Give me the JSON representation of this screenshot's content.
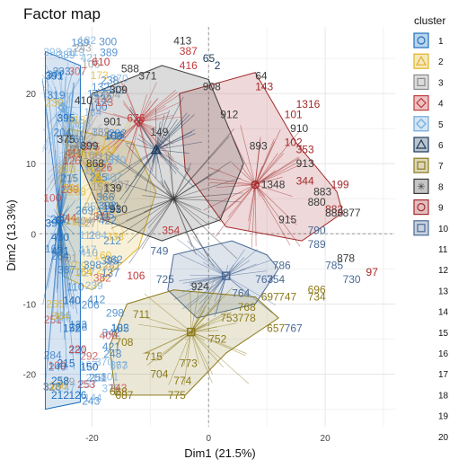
{
  "chart_data": {
    "type": "scatter",
    "title": "Factor map",
    "xlabel": "Dim1 (21.5%)",
    "ylabel": "Dim2 (13.3%)",
    "xlim": [
      -29,
      32
    ],
    "ylim": [
      -27.5,
      29.5
    ],
    "x_ticks": [
      -20,
      0,
      20
    ],
    "y_ticks": [
      -20,
      -10,
      0,
      10,
      20
    ],
    "x_tick_labels": [
      "-20",
      "0",
      "20"
    ],
    "y_tick_labels": [
      "-20",
      "-10",
      "0",
      "10",
      "20"
    ],
    "grid": true,
    "legend": {
      "title": "cluster",
      "placement": "right",
      "entries": [
        "1",
        "2",
        "3",
        "4",
        "5",
        "6",
        "7",
        "8",
        "9",
        "10",
        "11",
        "12",
        "13",
        "14",
        "15",
        "16",
        "17",
        "18",
        "19",
        "20"
      ]
    },
    "cluster_colors": {
      "1": "#1F6FBF",
      "2": "#E0B324",
      "3": "#8C8C8C",
      "4": "#C0393B",
      "5": "#6FA8DC",
      "6": "#1B3A5C",
      "7": "#8C7A1A",
      "8": "#3A3A3A",
      "9": "#A3292A",
      "10": "#4A6A95"
    },
    "centers": [
      {
        "cluster": "1",
        "x": -25.5,
        "y": 2
      },
      {
        "cluster": "2",
        "x": -19,
        "y": 8
      },
      {
        "cluster": "3",
        "x": -23,
        "y": 12
      },
      {
        "cluster": "4",
        "x": -12,
        "y": 16
      },
      {
        "cluster": "5",
        "x": -25,
        "y": 18
      },
      {
        "cluster": "6",
        "x": -9,
        "y": 12
      },
      {
        "cluster": "7",
        "x": -3,
        "y": -14
      },
      {
        "cluster": "8",
        "x": -6,
        "y": 5
      },
      {
        "cluster": "9",
        "x": 8,
        "y": 7
      },
      {
        "cluster": "10",
        "x": 3,
        "y": -6
      }
    ],
    "labels": [
      {
        "t": "413",
        "x": -6,
        "y": 27,
        "c": "8"
      },
      {
        "t": "387",
        "x": -5,
        "y": 25.5,
        "c": "4"
      },
      {
        "t": "65",
        "x": -1,
        "y": 24.5,
        "c": "6"
      },
      {
        "t": "2",
        "x": 1,
        "y": 23.5,
        "c": "6"
      },
      {
        "t": "64",
        "x": 8,
        "y": 22,
        "c": "8"
      },
      {
        "t": "416",
        "x": -5,
        "y": 23.5,
        "c": "4"
      },
      {
        "t": "588",
        "x": -15,
        "y": 23,
        "c": "8"
      },
      {
        "t": "908",
        "x": -1,
        "y": 20.5,
        "c": "8"
      },
      {
        "t": "143",
        "x": 8,
        "y": 20.5,
        "c": "9"
      },
      {
        "t": "1316",
        "x": 15,
        "y": 18,
        "c": "9"
      },
      {
        "t": "101",
        "x": 13,
        "y": 16.5,
        "c": "9"
      },
      {
        "t": "912",
        "x": 2,
        "y": 16.5,
        "c": "8"
      },
      {
        "t": "910",
        "x": 14,
        "y": 14.5,
        "c": "8"
      },
      {
        "t": "901",
        "x": -18,
        "y": 15.5,
        "c": "8"
      },
      {
        "t": "410",
        "x": -23,
        "y": 18.5,
        "c": "8"
      },
      {
        "t": "375",
        "x": -26,
        "y": 13,
        "c": "8"
      },
      {
        "t": "899",
        "x": -22,
        "y": 12,
        "c": "8"
      },
      {
        "t": "868",
        "x": -21,
        "y": 9.5,
        "c": "8"
      },
      {
        "t": "893",
        "x": 7,
        "y": 12,
        "c": "8"
      },
      {
        "t": "102",
        "x": 13,
        "y": 12.5,
        "c": "9"
      },
      {
        "t": "353",
        "x": 15,
        "y": 11.5,
        "c": "9"
      },
      {
        "t": "913",
        "x": 15,
        "y": 9.5,
        "c": "8"
      },
      {
        "t": "344",
        "x": 15,
        "y": 7,
        "c": "9"
      },
      {
        "t": "1348",
        "x": 9,
        "y": 6.5,
        "c": "8"
      },
      {
        "t": "199",
        "x": 21,
        "y": 6.5,
        "c": "9"
      },
      {
        "t": "883",
        "x": 18,
        "y": 5.5,
        "c": "8"
      },
      {
        "t": "880",
        "x": 17,
        "y": 4,
        "c": "8"
      },
      {
        "t": "882",
        "x": 20,
        "y": 3,
        "c": "9"
      },
      {
        "t": "877",
        "x": 23,
        "y": 2.5,
        "c": "8"
      },
      {
        "t": "888",
        "x": 20,
        "y": 2.5,
        "c": "8"
      },
      {
        "t": "915",
        "x": 12,
        "y": 1.5,
        "c": "8"
      },
      {
        "t": "790",
        "x": 17,
        "y": 0,
        "c": "10"
      },
      {
        "t": "789",
        "x": 17,
        "y": -2,
        "c": "10"
      },
      {
        "t": "786",
        "x": 11,
        "y": -5,
        "c": "10"
      },
      {
        "t": "785",
        "x": 20,
        "y": -5,
        "c": "10"
      },
      {
        "t": "878",
        "x": 22,
        "y": -4,
        "c": "8"
      },
      {
        "t": "97",
        "x": 27,
        "y": -6,
        "c": "9"
      },
      {
        "t": "730",
        "x": 23,
        "y": -7,
        "c": "10"
      },
      {
        "t": "763",
        "x": 8,
        "y": -7,
        "c": "10"
      },
      {
        "t": "754",
        "x": 10,
        "y": -7,
        "c": "10"
      },
      {
        "t": "696",
        "x": 17,
        "y": -8.5,
        "c": "7"
      },
      {
        "t": "734",
        "x": 17,
        "y": -9.5,
        "c": "7"
      },
      {
        "t": "697",
        "x": 9,
        "y": -9.5,
        "c": "7"
      },
      {
        "t": "747",
        "x": 12,
        "y": -9.5,
        "c": "7"
      },
      {
        "t": "764",
        "x": 4,
        "y": -9,
        "c": "10"
      },
      {
        "t": "924",
        "x": -3,
        "y": -8,
        "c": "8"
      },
      {
        "t": "768",
        "x": 5,
        "y": -11,
        "c": "7"
      },
      {
        "t": "778",
        "x": 5,
        "y": -12.5,
        "c": "7"
      },
      {
        "t": "753",
        "x": 2,
        "y": -12.5,
        "c": "7"
      },
      {
        "t": "657",
        "x": 10,
        "y": -14,
        "c": "7"
      },
      {
        "t": "767",
        "x": 13,
        "y": -14,
        "c": "10"
      },
      {
        "t": "752",
        "x": 0,
        "y": -15.5,
        "c": "7"
      },
      {
        "t": "725",
        "x": -9,
        "y": -7,
        "c": "10"
      },
      {
        "t": "749",
        "x": -10,
        "y": -3,
        "c": "10"
      },
      {
        "t": "711",
        "x": -13,
        "y": -12,
        "c": "7"
      },
      {
        "t": "708",
        "x": -16,
        "y": -16,
        "c": "7"
      },
      {
        "t": "715",
        "x": -11,
        "y": -18,
        "c": "7"
      },
      {
        "t": "773",
        "x": -5,
        "y": -19,
        "c": "7"
      },
      {
        "t": "704",
        "x": -10,
        "y": -20.5,
        "c": "7"
      },
      {
        "t": "774",
        "x": -6,
        "y": -21.5,
        "c": "7"
      },
      {
        "t": "775",
        "x": -7,
        "y": -23.5,
        "c": "7"
      },
      {
        "t": "668",
        "x": -17,
        "y": -23,
        "c": "7"
      },
      {
        "t": "687",
        "x": -16,
        "y": -23.5,
        "c": "7"
      },
      {
        "t": "150",
        "x": -22,
        "y": -19.5,
        "c": "1"
      },
      {
        "t": "212",
        "x": -27,
        "y": -23.5,
        "c": "1"
      },
      {
        "t": "126",
        "x": -24,
        "y": -23.5,
        "c": "1"
      },
      {
        "t": "106",
        "x": -14,
        "y": -6.5,
        "c": "4"
      },
      {
        "t": "354",
        "x": -8,
        "y": 0,
        "c": "4"
      },
      {
        "t": "399",
        "x": -28,
        "y": 1,
        "c": "1"
      },
      {
        "t": "930",
        "x": -17,
        "y": 3,
        "c": "8"
      },
      {
        "t": "139",
        "x": -18,
        "y": 6,
        "c": "8"
      },
      {
        "t": "431",
        "x": -27,
        "y": -3,
        "c": "1"
      },
      {
        "t": "430",
        "x": -27,
        "y": -1,
        "c": "1"
      },
      {
        "t": "389",
        "x": -26,
        "y": 25,
        "c": "5"
      },
      {
        "t": "391",
        "x": -28,
        "y": 22,
        "c": "1"
      },
      {
        "t": "395",
        "x": -26,
        "y": 16,
        "c": "1"
      },
      {
        "t": "309",
        "x": -17,
        "y": 20,
        "c": "8"
      },
      {
        "t": "371",
        "x": -12,
        "y": 22,
        "c": "8"
      },
      {
        "t": "610",
        "x": -20,
        "y": 24,
        "c": "4"
      },
      {
        "t": "676",
        "x": -14,
        "y": 16,
        "c": "4"
      },
      {
        "t": "149",
        "x": -10,
        "y": 14,
        "c": "8"
      },
      {
        "t": "140",
        "x": -25,
        "y": -10,
        "c": "1"
      },
      {
        "t": "152",
        "x": -25,
        "y": -14,
        "c": "1"
      },
      {
        "t": "215",
        "x": -26,
        "y": -19,
        "c": "1"
      },
      {
        "t": "258",
        "x": -27,
        "y": -21.5,
        "c": "1"
      },
      {
        "t": "164",
        "x": -23,
        "y": -6,
        "c": "2"
      },
      {
        "t": "301",
        "x": -25,
        "y": 6,
        "c": "2"
      },
      {
        "t": "220",
        "x": -24,
        "y": -17,
        "c": "4"
      }
    ],
    "hull_vertices": [
      {
        "cluster": "9",
        "points": [
          [
            -5,
            20
          ],
          [
            8,
            23
          ],
          [
            15,
            13
          ],
          [
            22,
            6
          ],
          [
            23,
            3
          ],
          [
            16,
            -1
          ],
          [
            3,
            1
          ],
          [
            -4,
            9
          ]
        ]
      },
      {
        "cluster": "10",
        "points": [
          [
            -6,
            -3
          ],
          [
            4,
            -1
          ],
          [
            10,
            -3
          ],
          [
            12,
            -5
          ],
          [
            8,
            -10
          ],
          [
            -2,
            -12
          ],
          [
            -7,
            -8
          ]
        ]
      },
      {
        "cluster": "7",
        "points": [
          [
            -14,
            -10
          ],
          [
            -6,
            -8
          ],
          [
            8,
            -9
          ],
          [
            12,
            -12
          ],
          [
            3,
            -17
          ],
          [
            -4,
            -23
          ],
          [
            -16,
            -23
          ],
          [
            -17,
            -16
          ]
        ]
      },
      {
        "cluster": "2",
        "points": [
          [
            -24,
            15
          ],
          [
            -13,
            13
          ],
          [
            -9,
            6
          ],
          [
            -12,
            -2
          ],
          [
            -20,
            -8
          ],
          [
            -25,
            -6
          ],
          [
            -26,
            4
          ]
        ]
      },
      {
        "cluster": "1",
        "points": [
          [
            -28,
            26
          ],
          [
            -22,
            24
          ],
          [
            -22,
            10
          ],
          [
            -22,
            -5
          ],
          [
            -22,
            -24
          ],
          [
            -28,
            -25
          ]
        ]
      },
      {
        "cluster": "8",
        "points": [
          [
            -20,
            20
          ],
          [
            -8,
            24
          ],
          [
            0,
            22
          ],
          [
            6,
            10
          ],
          [
            2,
            2
          ],
          [
            -8,
            -1
          ],
          [
            -18,
            2
          ],
          [
            -22,
            10
          ]
        ]
      }
    ]
  }
}
